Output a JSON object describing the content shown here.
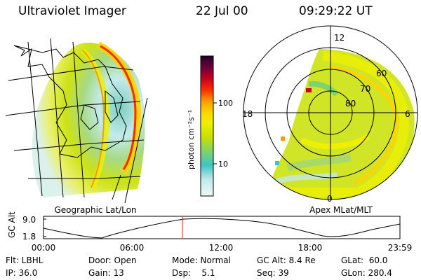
{
  "header": {
    "instrument": "Ultraviolet Imager",
    "date": "22 Jul 00",
    "time": "09:29:22 UT"
  },
  "geo_panel": {
    "label": "Geographic Lat/Lon"
  },
  "polar_panel": {
    "label": "Apex MLat/MLT",
    "mlt_labels": [
      "12",
      "18",
      "6",
      "0"
    ],
    "mlat_labels": [
      "60",
      "70",
      "80"
    ]
  },
  "colorbar": {
    "unit": "photon cm⁻²s⁻¹",
    "ticks": [
      "100",
      "10"
    ],
    "colors": [
      "#f2f7f7",
      "#bfe9ea",
      "#3cc6c2",
      "#7fd36b",
      "#c8e000",
      "#eef000",
      "#ffd400",
      "#ff9a00",
      "#ff2a00",
      "#c40020",
      "#6a0038",
      "#26002a"
    ]
  },
  "timeline": {
    "ylabel": "GC Alt",
    "y_ticks": [
      "9.0",
      "1.8"
    ],
    "x_ticks": [
      "00:00",
      "06:00",
      "12:00",
      "18:00",
      "23:59"
    ],
    "current_time": "09:29",
    "marker_color": "#e02020"
  },
  "params": {
    "col1": [
      "Flt: LBHL",
      "IP: 36.0"
    ],
    "col2": [
      "Door: Open",
      "Gain: 13"
    ],
    "col3": [
      "Mode: Normal",
      "Dsp:    5.1"
    ],
    "col4": [
      "GC Alt: 8.4 Re",
      "Seq: 39"
    ],
    "col5": [
      "GLat:  60.0",
      "GLon: 280.4"
    ]
  }
}
